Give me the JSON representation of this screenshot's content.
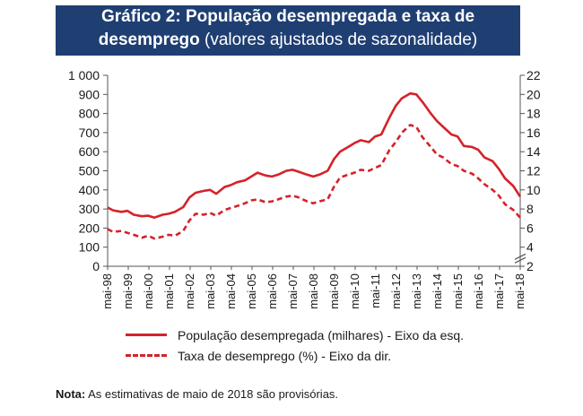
{
  "title": {
    "bold": "Gráfico 2: População desempregada e taxa de desemprego",
    "line1": "Gráfico 2: População desempregada e taxa de",
    "line2_bold": "desemprego",
    "line2_rest": " (valores ajustados de sazonalidade)"
  },
  "note": {
    "label": "Nota:",
    "text": " As estimativas de maio de 2018 são provisórias."
  },
  "colors": {
    "series": "#d4222a",
    "title_bg": "#1f3f73"
  },
  "chart_data": {
    "type": "line",
    "x_tick_labels": [
      "mai-98",
      "mai-99",
      "mai-00",
      "mai-01",
      "mai-02",
      "mai-03",
      "mai-04",
      "mai-05",
      "mai-06",
      "mai-07",
      "mai-08",
      "mai-09",
      "mai-10",
      "mai-11",
      "mai-12",
      "mai-13",
      "mai-14",
      "mai-15",
      "mai-16",
      "mai-17",
      "mai-18"
    ],
    "y_left": {
      "ylim": [
        0,
        1000
      ],
      "ticks": [
        "0",
        "100",
        "200",
        "300",
        "400",
        "500",
        "600",
        "700",
        "800",
        "900",
        "1 000"
      ]
    },
    "y_right": {
      "ylim": [
        2,
        22
      ],
      "ticks": [
        "2",
        "4",
        "6",
        "8",
        "10",
        "12",
        "14",
        "16",
        "18",
        "20",
        "22"
      ],
      "axis_break": true
    },
    "x_range": [
      1998.333,
      2018.333
    ],
    "series": [
      {
        "name": "População desempregada (milhares) - Eixo da esq.",
        "style": "solid",
        "axis": "left",
        "x": [
          1998.33,
          1998.6,
          1999.0,
          1999.3,
          1999.6,
          2000.0,
          2000.3,
          2000.6,
          2001.0,
          2001.3,
          2001.6,
          2002.0,
          2002.3,
          2002.6,
          2003.0,
          2003.3,
          2003.6,
          2004.0,
          2004.3,
          2004.6,
          2005.0,
          2005.3,
          2005.6,
          2006.0,
          2006.3,
          2006.6,
          2007.0,
          2007.3,
          2007.6,
          2008.0,
          2008.3,
          2008.6,
          2009.0,
          2009.3,
          2009.6,
          2010.0,
          2010.3,
          2010.6,
          2011.0,
          2011.3,
          2011.6,
          2012.0,
          2012.3,
          2012.6,
          2013.0,
          2013.3,
          2013.6,
          2014.0,
          2014.3,
          2014.6,
          2015.0,
          2015.3,
          2015.6,
          2016.0,
          2016.3,
          2016.6,
          2017.0,
          2017.3,
          2017.6,
          2018.0,
          2018.33
        ],
        "values": [
          308,
          293,
          285,
          290,
          270,
          262,
          265,
          255,
          270,
          275,
          285,
          310,
          360,
          385,
          395,
          400,
          380,
          415,
          425,
          440,
          450,
          470,
          490,
          475,
          470,
          480,
          500,
          505,
          495,
          480,
          470,
          480,
          500,
          560,
          600,
          625,
          645,
          660,
          650,
          680,
          690,
          780,
          840,
          880,
          905,
          900,
          860,
          800,
          760,
          730,
          690,
          680,
          630,
          625,
          610,
          570,
          550,
          510,
          460,
          420,
          365
        ]
      },
      {
        "name": "Taxa de desemprego (%) - Eixo da dir.",
        "style": "dashed",
        "axis": "right",
        "x": [
          1998.33,
          1998.6,
          1999.0,
          1999.3,
          1999.6,
          2000.0,
          2000.3,
          2000.6,
          2001.0,
          2001.3,
          2001.6,
          2002.0,
          2002.3,
          2002.6,
          2003.0,
          2003.3,
          2003.6,
          2004.0,
          2004.3,
          2004.6,
          2005.0,
          2005.3,
          2005.6,
          2006.0,
          2006.3,
          2006.6,
          2007.0,
          2007.3,
          2007.6,
          2008.0,
          2008.3,
          2008.6,
          2009.0,
          2009.3,
          2009.6,
          2010.0,
          2010.3,
          2010.6,
          2011.0,
          2011.3,
          2011.6,
          2012.0,
          2012.3,
          2012.6,
          2013.0,
          2013.3,
          2013.6,
          2014.0,
          2014.3,
          2014.6,
          2015.0,
          2015.3,
          2015.6,
          2016.0,
          2016.3,
          2016.6,
          2017.0,
          2017.3,
          2017.6,
          2018.0,
          2018.33
        ],
        "values": [
          5.9,
          5.6,
          5.7,
          5.5,
          5.3,
          5.0,
          5.2,
          4.9,
          5.1,
          5.3,
          5.2,
          5.7,
          6.8,
          7.5,
          7.4,
          7.6,
          7.3,
          7.9,
          8.1,
          8.3,
          8.6,
          8.9,
          9.0,
          8.7,
          8.8,
          9.0,
          9.3,
          9.4,
          9.2,
          8.8,
          8.6,
          8.8,
          9.0,
          10.3,
          11.3,
          11.6,
          11.8,
          12.1,
          12.0,
          12.3,
          12.6,
          14.2,
          15.0,
          16.0,
          16.8,
          16.6,
          15.5,
          14.5,
          13.7,
          13.4,
          12.7,
          12.5,
          12.0,
          11.7,
          11.2,
          10.6,
          10.0,
          9.4,
          8.5,
          7.9,
          7.1
        ]
      }
    ],
    "legend": [
      {
        "label": "População desempregada (milhares) - Eixo da esq.",
        "style": "solid"
      },
      {
        "label": "Taxa de desemprego (%) - Eixo da dir.",
        "style": "dashed"
      }
    ],
    "legend_position": "bottom",
    "grid": false
  }
}
